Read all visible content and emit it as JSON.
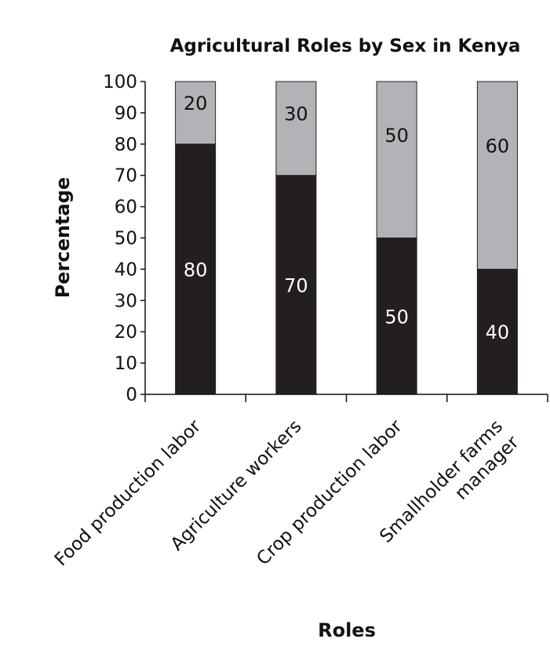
{
  "chart_data": {
    "type": "bar",
    "stacked": true,
    "title": "Agricultural Roles by Sex in Kenya",
    "xlabel": "Roles",
    "ylabel": "Percentage",
    "ylim": [
      0,
      100
    ],
    "yticks": [
      0,
      10,
      20,
      30,
      40,
      50,
      60,
      70,
      80,
      90,
      100
    ],
    "grid": false,
    "legend": "none",
    "categories": [
      [
        "Food production labor"
      ],
      [
        "Agriculture workers"
      ],
      [
        "Crop production labor"
      ],
      [
        "Smallholder farms",
        "manager"
      ]
    ],
    "series": [
      {
        "values": [
          80,
          70,
          50,
          40
        ],
        "color": "#231f20"
      },
      {
        "values": [
          20,
          30,
          50,
          60
        ],
        "color": "#b1b3b6"
      }
    ],
    "data_labels": [
      [
        "80",
        "70",
        "50",
        "40"
      ],
      [
        "20",
        "30",
        "50",
        "60"
      ]
    ]
  }
}
